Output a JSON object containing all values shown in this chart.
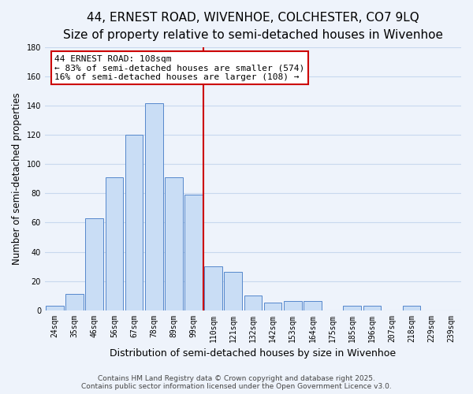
{
  "title": "44, ERNEST ROAD, WIVENHOE, COLCHESTER, CO7 9LQ",
  "subtitle": "Size of property relative to semi-detached houses in Wivenhoe",
  "xlabel": "Distribution of semi-detached houses by size in Wivenhoe",
  "ylabel": "Number of semi-detached properties",
  "categories": [
    "24sqm",
    "35sqm",
    "46sqm",
    "56sqm",
    "67sqm",
    "78sqm",
    "89sqm",
    "99sqm",
    "110sqm",
    "121sqm",
    "132sqm",
    "142sqm",
    "153sqm",
    "164sqm",
    "175sqm",
    "185sqm",
    "196sqm",
    "207sqm",
    "218sqm",
    "229sqm",
    "239sqm"
  ],
  "bar_values": [
    3,
    11,
    63,
    91,
    120,
    142,
    91,
    79,
    30,
    26,
    10,
    5,
    6,
    6,
    0,
    3,
    3,
    0,
    3,
    0,
    0
  ],
  "bar_color": "#c9ddf5",
  "bar_edge_color": "#5588cc",
  "grid_color": "#c8d8ee",
  "background_color": "#eef3fb",
  "vline_color": "#cc0000",
  "annotation_title": "44 ERNEST ROAD: 108sqm",
  "annotation_line1": "← 83% of semi-detached houses are smaller (574)",
  "annotation_line2": "16% of semi-detached houses are larger (108) →",
  "annotation_box_color": "#ffffff",
  "annotation_box_edge": "#cc0000",
  "ylim": [
    0,
    180
  ],
  "yticks": [
    0,
    20,
    40,
    60,
    80,
    100,
    120,
    140,
    160,
    180
  ],
  "footer_line1": "Contains HM Land Registry data © Crown copyright and database right 2025.",
  "footer_line2": "Contains public sector information licensed under the Open Government Licence v3.0.",
  "title_fontsize": 11,
  "subtitle_fontsize": 9.5,
  "xlabel_fontsize": 9,
  "ylabel_fontsize": 8.5,
  "tick_fontsize": 7,
  "footer_fontsize": 6.5,
  "annotation_fontsize": 8
}
